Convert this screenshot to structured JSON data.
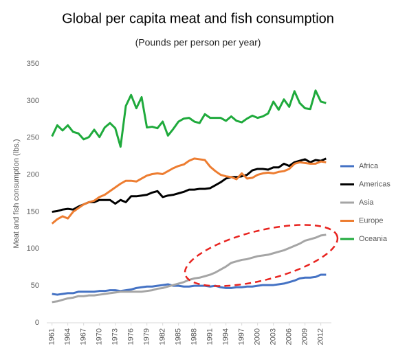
{
  "chart_data": {
    "type": "line",
    "title": "Global per capita meat and fish consumption",
    "subtitle": "(Pounds per person per year)",
    "y_label": "Meat and fish consumption (lbs.)",
    "x": [
      1961,
      1962,
      1963,
      1964,
      1965,
      1966,
      1967,
      1968,
      1969,
      1970,
      1971,
      1972,
      1973,
      1974,
      1975,
      1976,
      1977,
      1978,
      1979,
      1980,
      1981,
      1982,
      1983,
      1984,
      1985,
      1986,
      1987,
      1988,
      1989,
      1990,
      1991,
      1992,
      1993,
      1994,
      1995,
      1996,
      1997,
      1998,
      1999,
      2000,
      2001,
      2002,
      2003,
      2004,
      2005,
      2006,
      2007,
      2008,
      2009,
      2010,
      2011,
      2012,
      2013
    ],
    "xlim": [
      1960,
      2014
    ],
    "xticks": [
      1961,
      1964,
      1967,
      1970,
      1973,
      1976,
      1979,
      1982,
      1985,
      1988,
      1991,
      1994,
      1997,
      2000,
      2003,
      2006,
      2009,
      2012
    ],
    "ylim": [
      0,
      350
    ],
    "yticks": [
      0,
      50,
      100,
      150,
      200,
      250,
      300,
      350
    ],
    "grid": false,
    "legend": "right",
    "series": [
      {
        "name": "Africa",
        "color": "#4472c4",
        "values": [
          39,
          38,
          39,
          40,
          40,
          42,
          42,
          42,
          42,
          43,
          43,
          44,
          44,
          43,
          44,
          45,
          47,
          48,
          49,
          49,
          50,
          51,
          52,
          50,
          50,
          49,
          49,
          50,
          50,
          50,
          49,
          50,
          48,
          47,
          47,
          48,
          48,
          49,
          49,
          50,
          51,
          51,
          51,
          52,
          53,
          55,
          57,
          60,
          61,
          61,
          62,
          65,
          65
        ]
      },
      {
        "name": "Americas",
        "color": "#000000",
        "values": [
          150,
          151,
          153,
          154,
          153,
          157,
          160,
          163,
          163,
          166,
          166,
          166,
          161,
          166,
          163,
          171,
          171,
          172,
          173,
          176,
          178,
          170,
          172,
          173,
          175,
          177,
          180,
          180,
          181,
          181,
          182,
          186,
          190,
          195,
          197,
          197,
          198,
          200,
          206,
          208,
          208,
          207,
          210,
          210,
          215,
          212,
          217,
          219,
          221,
          217,
          220,
          219,
          222
        ]
      },
      {
        "name": "Asia",
        "color": "#a5a5a5",
        "values": [
          28,
          29,
          31,
          33,
          34,
          36,
          36,
          37,
          37,
          38,
          39,
          40,
          41,
          42,
          42,
          42,
          42,
          42,
          43,
          44,
          46,
          47,
          49,
          51,
          53,
          55,
          58,
          60,
          61,
          63,
          65,
          68,
          72,
          76,
          81,
          83,
          85,
          86,
          88,
          90,
          91,
          92,
          94,
          96,
          98,
          101,
          104,
          107,
          111,
          113,
          115,
          118,
          119
        ]
      },
      {
        "name": "Europe",
        "color": "#ed7d31",
        "values": [
          134,
          140,
          144,
          141,
          150,
          155,
          160,
          163,
          165,
          170,
          173,
          178,
          183,
          188,
          192,
          192,
          191,
          195,
          199,
          201,
          202,
          201,
          205,
          209,
          212,
          214,
          219,
          222,
          221,
          220,
          211,
          205,
          200,
          198,
          197,
          194,
          202,
          195,
          196,
          200,
          202,
          203,
          202,
          204,
          205,
          208,
          215,
          217,
          216,
          215,
          215,
          218,
          217
        ]
      },
      {
        "name": "Oceania",
        "color": "#1faa3c",
        "values": [
          252,
          267,
          260,
          267,
          258,
          256,
          248,
          251,
          261,
          251,
          264,
          270,
          263,
          238,
          293,
          308,
          290,
          305,
          264,
          265,
          263,
          272,
          253,
          262,
          272,
          276,
          277,
          272,
          270,
          282,
          277,
          277,
          277,
          273,
          279,
          273,
          271,
          276,
          280,
          277,
          279,
          283,
          299,
          288,
          302,
          292,
          313,
          297,
          290,
          289,
          314,
          299,
          297
        ]
      }
    ]
  }
}
